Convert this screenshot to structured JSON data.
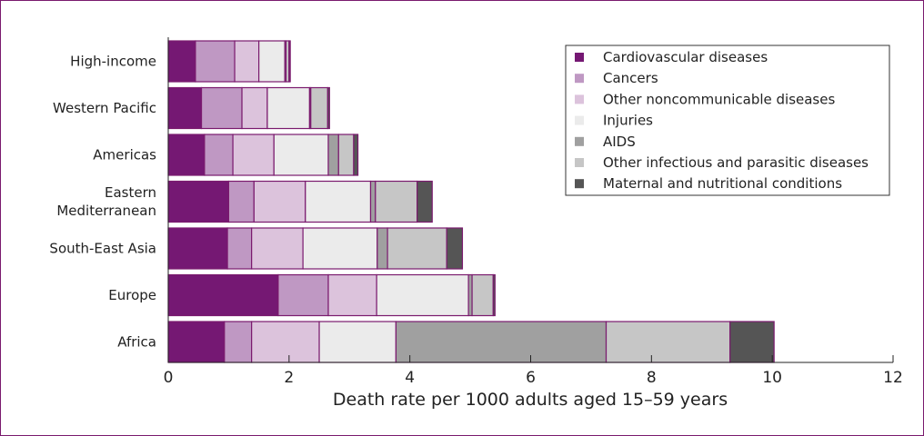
{
  "chart_data": {
    "type": "bar",
    "orientation": "horizontal",
    "stacked": true,
    "categories": [
      "High-income",
      "Western Pacific",
      "Americas",
      "Eastern Mediterranean",
      "South-East Asia",
      "Europe",
      "Africa"
    ],
    "category_lines": [
      [
        "High-income"
      ],
      [
        "Western Pacific"
      ],
      [
        "Americas"
      ],
      [
        "Eastern",
        "Mediterranean"
      ],
      [
        "South-East Asia"
      ],
      [
        "Europe"
      ],
      [
        "Africa"
      ]
    ],
    "series": [
      {
        "name": "Cardiovascular diseases",
        "color": "#751873",
        "values": [
          0.45,
          0.55,
          0.6,
          1.0,
          0.98,
          1.82,
          0.93
        ]
      },
      {
        "name": "Cancers",
        "color": "#bf98c3",
        "values": [
          0.65,
          0.67,
          0.47,
          0.42,
          0.4,
          0.83,
          0.45
        ]
      },
      {
        "name": "Other noncommunicable diseases",
        "color": "#dcc3dc",
        "values": [
          0.4,
          0.42,
          0.68,
          0.85,
          0.85,
          0.8,
          1.12
        ]
      },
      {
        "name": "Injuries",
        "color": "#ebebeb",
        "values": [
          0.43,
          0.7,
          0.9,
          1.08,
          1.23,
          1.52,
          1.27
        ]
      },
      {
        "name": "AIDS",
        "color": "#a0a0a0",
        "values": [
          0.02,
          0.02,
          0.17,
          0.08,
          0.17,
          0.06,
          3.48
        ]
      },
      {
        "name": "Other infectious and parasitic diseases",
        "color": "#c6c6c6",
        "values": [
          0.05,
          0.28,
          0.25,
          0.69,
          0.98,
          0.35,
          2.05
        ]
      },
      {
        "name": "Maternal and nutritional conditions",
        "color": "#555555",
        "values": [
          0.02,
          0.03,
          0.07,
          0.25,
          0.26,
          0.03,
          0.73
        ]
      }
    ],
    "xlabel": "Death rate per 1000 adults aged 15–59 years",
    "xlim": [
      0,
      12
    ],
    "x_ticks": [
      "0",
      "2",
      "4",
      "6",
      "8",
      "10",
      "12"
    ],
    "grid": false,
    "legend_position": "top-right"
  }
}
